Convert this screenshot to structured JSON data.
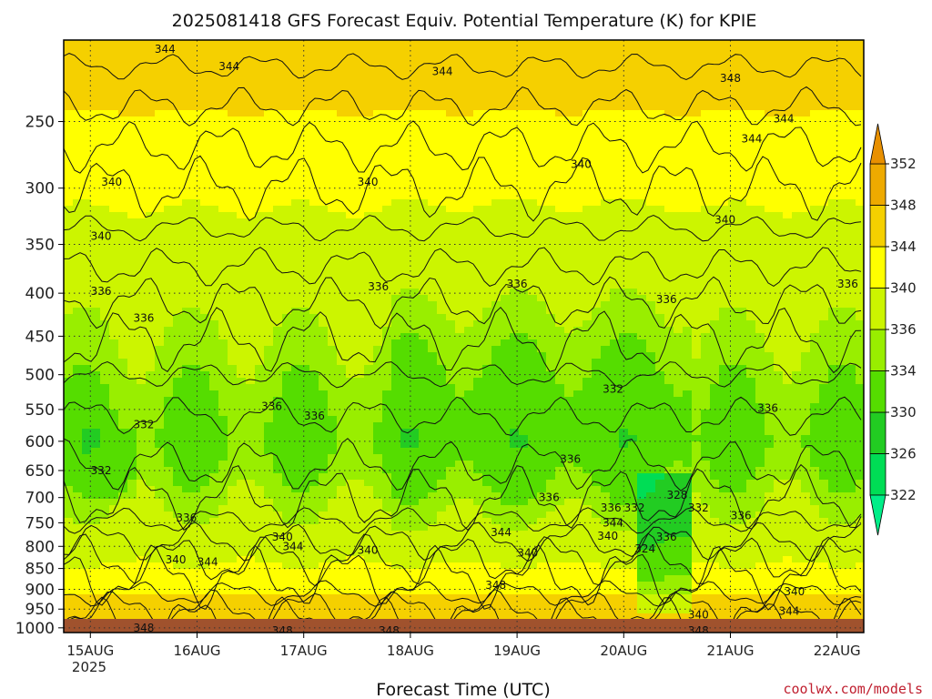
{
  "chart_data": {
    "type": "heatmap",
    "title": "2025081418 GFS Forecast Equiv. Potential Temperature (K) for KPIE",
    "xlabel": "Forecast Time (UTC)",
    "ylabel": "",
    "x_ticks": [
      "15AUG",
      "16AUG",
      "17AUG",
      "18AUG",
      "19AUG",
      "20AUG",
      "21AUG",
      "22AUG"
    ],
    "x_year_label": "2025",
    "xlim_days": [
      14.75,
      22.25
    ],
    "y_ticks": [
      250,
      300,
      350,
      400,
      450,
      500,
      550,
      600,
      650,
      700,
      750,
      800,
      850,
      900,
      950,
      1000
    ],
    "ylim": [
      200,
      1013
    ],
    "y_scale": "log",
    "y_inverted": true,
    "grid": true,
    "colorbar": {
      "levels": [
        322,
        326,
        330,
        334,
        336,
        340,
        344,
        348,
        352
      ],
      "colors": [
        "#00ee88",
        "#00dd55",
        "#22cc22",
        "#55dd00",
        "#99ee00",
        "#ccf500",
        "#ffff00",
        "#f5d000",
        "#eeaa00",
        "#e89000"
      ],
      "extend": "both"
    },
    "contour_labels": [
      {
        "x": 15.7,
        "y": 205,
        "label": "344"
      },
      {
        "x": 16.3,
        "y": 215,
        "label": "344"
      },
      {
        "x": 18.3,
        "y": 218,
        "label": "344"
      },
      {
        "x": 21.5,
        "y": 248,
        "label": "344"
      },
      {
        "x": 21.2,
        "y": 262,
        "label": "344"
      },
      {
        "x": 21.0,
        "y": 222,
        "label": "348"
      },
      {
        "x": 15.2,
        "y": 295,
        "label": "340"
      },
      {
        "x": 17.6,
        "y": 295,
        "label": "340"
      },
      {
        "x": 19.6,
        "y": 281,
        "label": "340"
      },
      {
        "x": 20.95,
        "y": 327,
        "label": "340"
      },
      {
        "x": 15.1,
        "y": 342,
        "label": "340"
      },
      {
        "x": 15.1,
        "y": 398,
        "label": "336"
      },
      {
        "x": 15.5,
        "y": 428,
        "label": "336"
      },
      {
        "x": 17.7,
        "y": 393,
        "label": "336"
      },
      {
        "x": 19.0,
        "y": 390,
        "label": "336"
      },
      {
        "x": 20.4,
        "y": 407,
        "label": "336"
      },
      {
        "x": 22.1,
        "y": 390,
        "label": "336"
      },
      {
        "x": 16.7,
        "y": 545,
        "label": "336"
      },
      {
        "x": 17.1,
        "y": 560,
        "label": "336"
      },
      {
        "x": 21.35,
        "y": 548,
        "label": "336"
      },
      {
        "x": 19.5,
        "y": 630,
        "label": "336"
      },
      {
        "x": 15.5,
        "y": 573,
        "label": "332"
      },
      {
        "x": 15.1,
        "y": 650,
        "label": "332"
      },
      {
        "x": 19.9,
        "y": 520,
        "label": "332"
      },
      {
        "x": 19.3,
        "y": 700,
        "label": "336"
      },
      {
        "x": 20.5,
        "y": 695,
        "label": "328"
      },
      {
        "x": 20.7,
        "y": 720,
        "label": "332"
      },
      {
        "x": 19.88,
        "y": 720,
        "label": "336"
      },
      {
        "x": 20.1,
        "y": 720,
        "label": "332"
      },
      {
        "x": 21.1,
        "y": 735,
        "label": "336"
      },
      {
        "x": 15.9,
        "y": 740,
        "label": "336"
      },
      {
        "x": 19.9,
        "y": 750,
        "label": "344"
      },
      {
        "x": 19.85,
        "y": 778,
        "label": "340"
      },
      {
        "x": 20.4,
        "y": 780,
        "label": "336"
      },
      {
        "x": 16.8,
        "y": 780,
        "label": "340"
      },
      {
        "x": 16.9,
        "y": 800,
        "label": "344"
      },
      {
        "x": 17.6,
        "y": 808,
        "label": "340"
      },
      {
        "x": 18.85,
        "y": 770,
        "label": "344"
      },
      {
        "x": 19.1,
        "y": 815,
        "label": "340"
      },
      {
        "x": 20.2,
        "y": 805,
        "label": "324"
      },
      {
        "x": 15.8,
        "y": 830,
        "label": "340"
      },
      {
        "x": 16.1,
        "y": 835,
        "label": "344"
      },
      {
        "x": 18.8,
        "y": 890,
        "label": "348"
      },
      {
        "x": 21.6,
        "y": 905,
        "label": "340"
      },
      {
        "x": 21.55,
        "y": 955,
        "label": "344"
      },
      {
        "x": 20.7,
        "y": 965,
        "label": "340"
      },
      {
        "x": 15.5,
        "y": 1000,
        "label": "348"
      },
      {
        "x": 20.7,
        "y": 1010,
        "label": "348"
      },
      {
        "x": 16.8,
        "y": 1055,
        "label": "348"
      },
      {
        "x": 17.8,
        "y": 1055,
        "label": "348"
      }
    ]
  },
  "footer": {
    "credit": "coolwx.com/models"
  }
}
